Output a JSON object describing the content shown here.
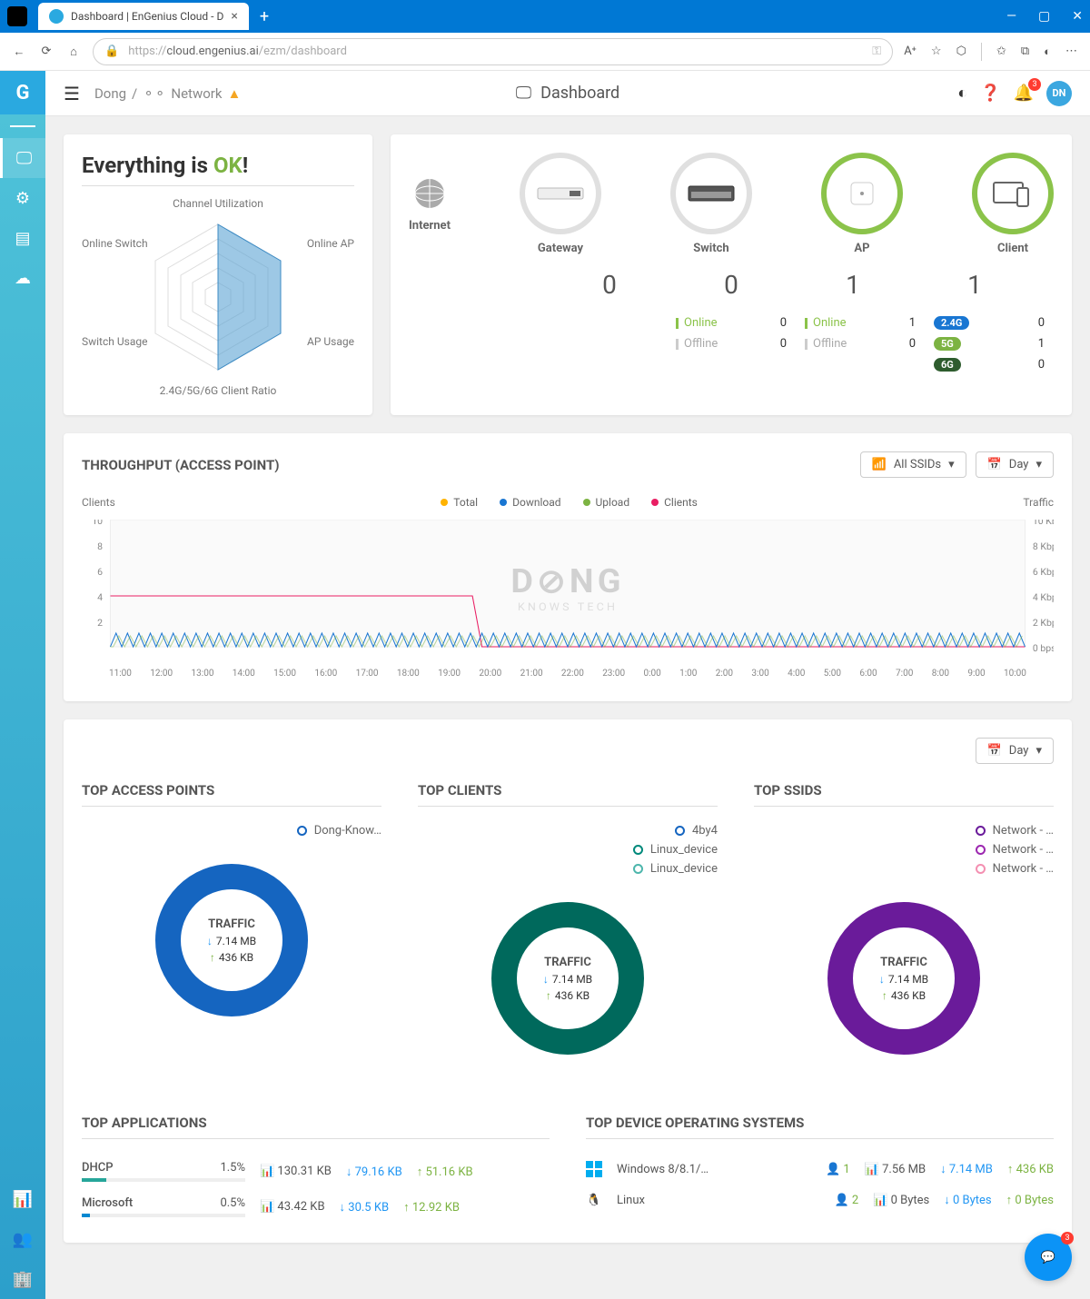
{
  "browser": {
    "tab_title": "Dashboard | EnGenius Cloud - D",
    "url": "https://cloud.engenius.ai/ezm/dashboard",
    "url_host": "cloud.engenius.ai",
    "url_path": "/ezm/dashboard"
  },
  "topbar": {
    "breadcrumb_user": "Dong",
    "breadcrumb_network": "Network",
    "page_title": "Dashboard",
    "notification_count": "3",
    "avatar_initials": "DN"
  },
  "health": {
    "title_prefix": "Everything is ",
    "title_status": "OK",
    "title_suffix": "!",
    "labels": {
      "top": "Channel Utilization",
      "right_top": "Online AP",
      "right_bottom": "AP Usage",
      "bottom": "2.4G/5G/6G Client Ratio",
      "left_bottom": "Switch Usage",
      "left_top": "Online Switch"
    }
  },
  "topology": {
    "items": [
      {
        "label": "Internet",
        "count": null,
        "ring_color": "none"
      },
      {
        "label": "Gateway",
        "count": "0",
        "ring_color": "#e0e0e0"
      },
      {
        "label": "Switch",
        "count": "0",
        "ring_color": "#e0e0e0"
      },
      {
        "label": "AP",
        "count": "1",
        "ring_color": "#8bc34a"
      },
      {
        "label": "Client",
        "count": "1",
        "ring_color": "#8bc34a"
      }
    ],
    "switch_status": {
      "online": "0",
      "offline": "0"
    },
    "ap_status": {
      "online": "1",
      "offline": "0"
    },
    "client_bands": [
      {
        "label": "2.4G",
        "value": "0",
        "color": "#1976d2"
      },
      {
        "label": "5G",
        "value": "1",
        "color": "#7cb342"
      },
      {
        "label": "6G",
        "value": "0",
        "color": "#2e5c2e"
      }
    ],
    "online_label": "Online",
    "offline_label": "Offline"
  },
  "throughput": {
    "title": "THROUGHPUT (ACCESS POINT)",
    "ssid_filter": "All SSIDs",
    "time_range": "Day",
    "left_axis_label": "Clients",
    "right_axis_label": "Traffic",
    "left_ticks": [
      "10",
      "8",
      "6",
      "4",
      "2",
      ""
    ],
    "right_ticks": [
      "10 Kbps",
      "8 Kbps",
      "6 Kbps",
      "4 Kbps",
      "2 Kbps",
      "0 bps"
    ],
    "x_ticks": [
      "11:00",
      "12:00",
      "13:00",
      "14:00",
      "15:00",
      "16:00",
      "17:00",
      "18:00",
      "19:00",
      "20:00",
      "21:00",
      "22:00",
      "23:00",
      "0:00",
      "1:00",
      "2:00",
      "3:00",
      "4:00",
      "5:00",
      "6:00",
      "7:00",
      "8:00",
      "9:00",
      "10:00"
    ],
    "legend": [
      {
        "label": "Total",
        "color": "#ffb300"
      },
      {
        "label": "Download",
        "color": "#1976d2"
      },
      {
        "label": "Upload",
        "color": "#7cb342"
      },
      {
        "label": "Clients",
        "color": "#e91e63"
      }
    ],
    "watermark": "DONG KNOWS TECH"
  },
  "tops": {
    "time_range": "Day",
    "columns": [
      {
        "title": "TOP ACCESS POINTS",
        "donut_color": "#1565c0",
        "download": "7.14 MB",
        "upload": "436 KB",
        "center_label": "TRAFFIC",
        "legend": [
          {
            "label": "Dong-Know…",
            "color": "#1565c0"
          }
        ]
      },
      {
        "title": "TOP CLIENTS",
        "donut_color": "#00695c",
        "download": "7.14 MB",
        "upload": "436 KB",
        "center_label": "TRAFFIC",
        "legend": [
          {
            "label": "4by4",
            "color": "#1565c0"
          },
          {
            "label": "Linux_device",
            "color": "#00897b"
          },
          {
            "label": "Linux_device",
            "color": "#4db6ac"
          }
        ]
      },
      {
        "title": "TOP SSIDS",
        "donut_color": "#6a1b9a",
        "download": "7.14 MB",
        "upload": "436 KB",
        "center_label": "TRAFFIC",
        "legend": [
          {
            "label": "Network - …",
            "color": "#6a1b9a"
          },
          {
            "label": "Network - …",
            "color": "#9c27b0"
          },
          {
            "label": "Network - …",
            "color": "#f48fb1"
          }
        ]
      }
    ]
  },
  "top_apps": {
    "title": "TOP APPLICATIONS",
    "rows": [
      {
        "name": "DHCP",
        "pct": "1.5%",
        "bar_pct": 15,
        "bar_color": "#26a69a",
        "total": "130.31 KB",
        "down": "79.16 KB",
        "up": "51.16 KB"
      },
      {
        "name": "Microsoft",
        "pct": "0.5%",
        "bar_pct": 5,
        "bar_color": "#0288d1",
        "total": "43.42 KB",
        "down": "30.5 KB",
        "up": "12.92 KB"
      }
    ]
  },
  "top_os": {
    "title": "TOP DEVICE OPERATING SYSTEMS",
    "rows": [
      {
        "name": "Windows 8/8.1/…",
        "clients": "1",
        "total": "7.56 MB",
        "down": "7.14 MB",
        "up": "436 KB",
        "icon": "windows"
      },
      {
        "name": "Linux",
        "clients": "2",
        "total": "0 Bytes",
        "down": "0 Bytes",
        "up": "0 Bytes",
        "icon": "linux"
      }
    ]
  },
  "chat_badge": "3"
}
